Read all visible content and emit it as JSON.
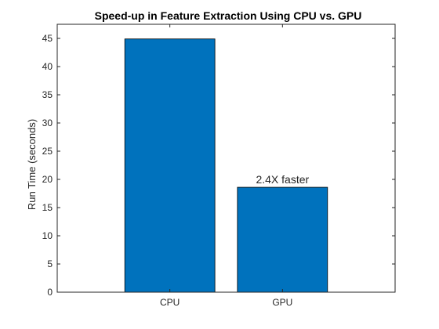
{
  "chart_data": {
    "type": "bar",
    "title": "Speed-up in Feature Extraction Using CPU vs. GPU",
    "xlabel": "",
    "ylabel": "Run Time (seconds)",
    "categories": [
      "CPU",
      "GPU"
    ],
    "values": [
      44.9,
      18.6
    ],
    "ylim": [
      0,
      47.5
    ],
    "yticks": [
      0,
      5,
      10,
      15,
      20,
      25,
      30,
      35,
      40,
      45
    ],
    "bar_color": "#0072BD",
    "grid": false,
    "annotations": [
      {
        "text": "2.4X faster",
        "category": "GPU"
      }
    ]
  }
}
